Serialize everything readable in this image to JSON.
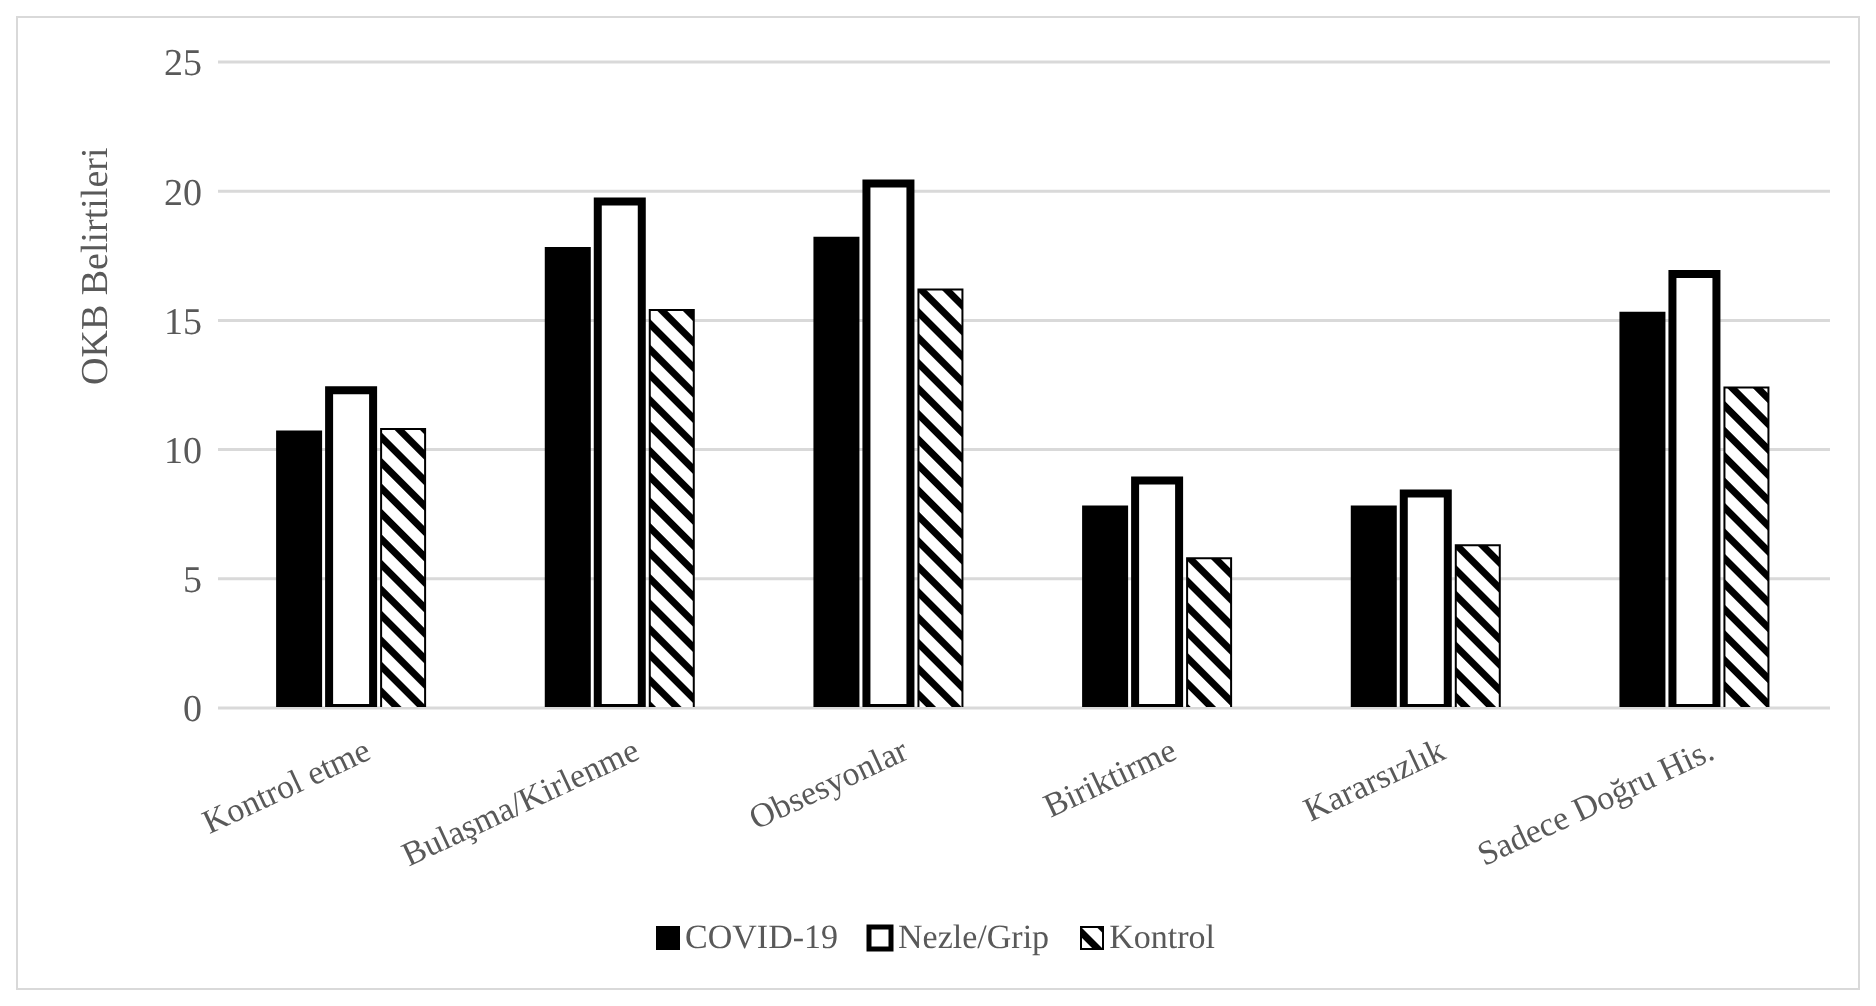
{
  "chart_data": {
    "type": "bar",
    "ylabel": "OKB Belirtileri",
    "categories": [
      "Kontrol etme",
      "Bulaşma/Kirlenme",
      "Obsesyonlar",
      "Biriktirme",
      "Kararsızlık",
      "Sadece Doğru His."
    ],
    "series": [
      {
        "name": "COVID-19",
        "color": "#000000",
        "values": [
          10.7,
          17.8,
          18.2,
          7.8,
          7.8,
          15.3
        ]
      },
      {
        "name": "Nezle/Grip",
        "color": "#ffffff",
        "values": [
          12.3,
          19.6,
          20.3,
          8.8,
          8.3,
          16.8
        ]
      },
      {
        "name": "Kontrol",
        "color": "#000000",
        "values": [
          10.8,
          15.4,
          16.2,
          5.8,
          6.3,
          12.4
        ]
      }
    ],
    "ylim": [
      0,
      25
    ],
    "yticks": [
      0,
      5,
      10,
      15,
      20,
      25
    ],
    "grid": "y",
    "legend": "bottom"
  }
}
